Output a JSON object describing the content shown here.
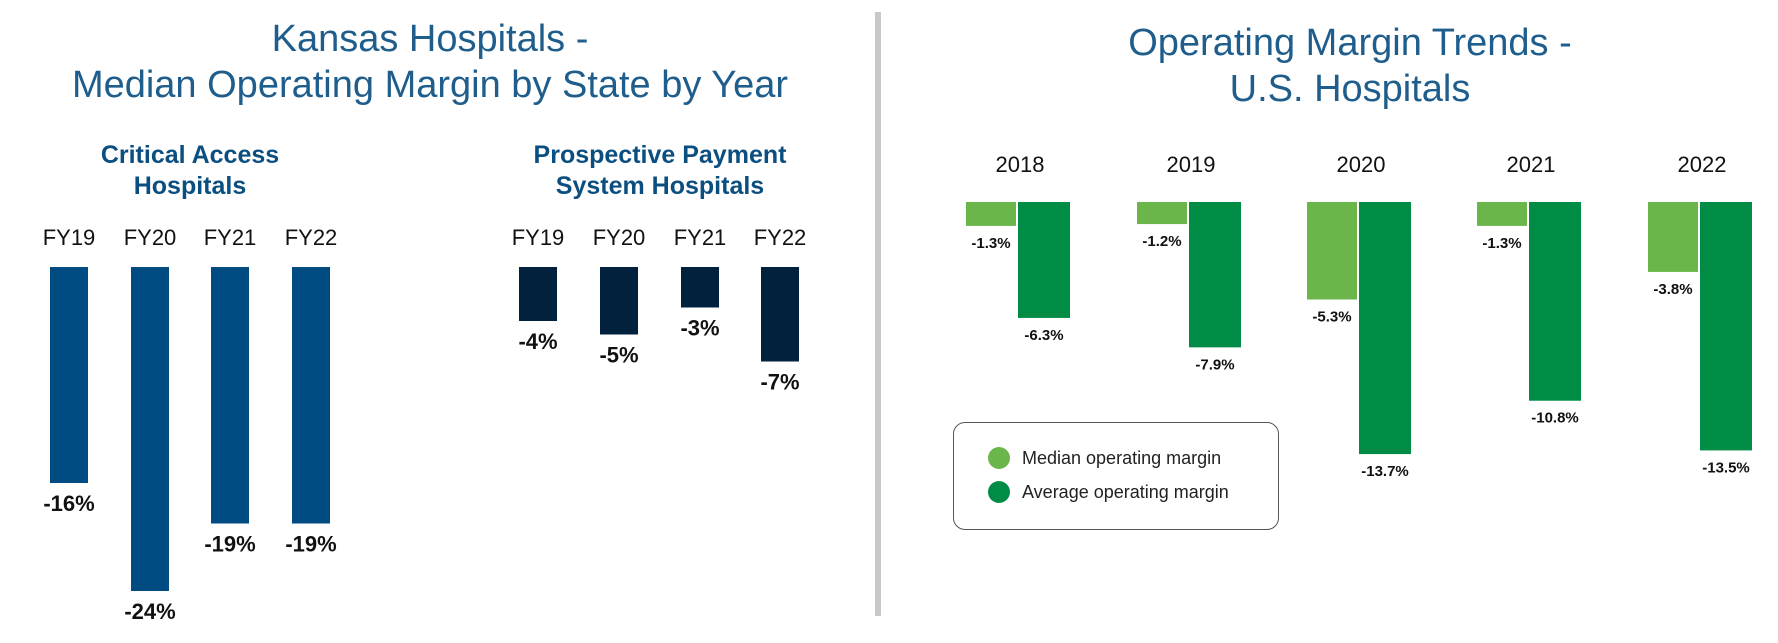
{
  "left_title": [
    "Kansas Hospitals -",
    "Median Operating Margin by State by Year"
  ],
  "right_title": [
    "Operating Margin Trends -",
    "U.S. Hospitals"
  ],
  "colors": {
    "cah_bar": "#004b82",
    "pps_bar": "#02213d",
    "median": "#6ab64a",
    "average": "#008c44",
    "title": "#1f5e8c",
    "divider": "#c8c8c8"
  },
  "legend": {
    "median_label": "Median operating margin",
    "average_label": "Average operating margin"
  },
  "chart_data": [
    {
      "type": "bar",
      "title": "Critical Access Hospitals",
      "title_lines": [
        "Critical Access",
        "Hospitals"
      ],
      "categories": [
        "FY19",
        "FY20",
        "FY21",
        "FY22"
      ],
      "values": [
        -16,
        -24,
        -19,
        -19
      ],
      "labels": [
        "-16%",
        "-24%",
        "-19%",
        "-19%"
      ]
    },
    {
      "type": "bar",
      "title": "Prospective Payment System Hospitals",
      "title_lines": [
        "Prospective Payment",
        "System Hospitals"
      ],
      "categories": [
        "FY19",
        "FY20",
        "FY21",
        "FY22"
      ],
      "values": [
        -4,
        -5,
        -3,
        -7
      ],
      "labels": [
        "-4%",
        "-5%",
        "-3%",
        "-7%"
      ]
    },
    {
      "type": "bar",
      "title": "Operating Margin Trends - U.S. Hospitals",
      "categories": [
        "2018",
        "2019",
        "2020",
        "2021",
        "2022"
      ],
      "series": [
        {
          "name": "Median operating margin",
          "values": [
            -1.3,
            -1.2,
            -5.3,
            -1.3,
            -3.8
          ],
          "labels": [
            "-1.3%",
            "-1.2%",
            "-5.3%",
            "-1.3%",
            "-3.8%"
          ]
        },
        {
          "name": "Average operating margin",
          "values": [
            -6.3,
            -7.9,
            -13.7,
            -10.8,
            -13.5
          ],
          "labels": [
            "-6.3%",
            "-7.9%",
            "-13.7%",
            "-10.8%",
            "-13.5%"
          ]
        }
      ],
      "legend": "inside bottom-left"
    }
  ]
}
